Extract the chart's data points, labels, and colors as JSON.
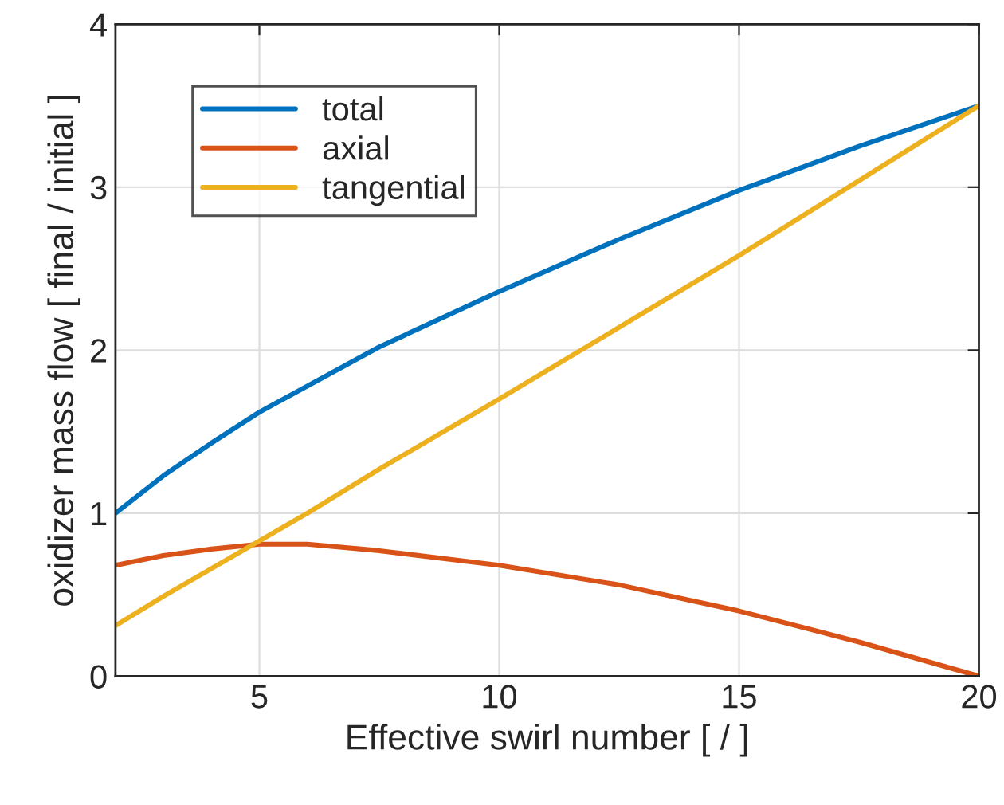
{
  "chart_data": {
    "type": "line",
    "xlabel": "Effective swirl number [ / ]",
    "ylabel": "oxidizer mass flow [ final / initial ]",
    "x": [
      2,
      3,
      4,
      5,
      6,
      7.5,
      10,
      12.5,
      15,
      17.5,
      20
    ],
    "series": [
      {
        "name": "total",
        "color": "#0072bd",
        "values": [
          1.0,
          1.23,
          1.43,
          1.62,
          1.78,
          2.02,
          2.36,
          2.68,
          2.98,
          3.25,
          3.5
        ]
      },
      {
        "name": "axial",
        "color": "#d95319",
        "values": [
          0.68,
          0.74,
          0.78,
          0.81,
          0.81,
          0.77,
          0.68,
          0.56,
          0.4,
          0.21,
          0.0
        ]
      },
      {
        "name": "tangential",
        "color": "#edb120",
        "values": [
          0.31,
          0.49,
          0.66,
          0.83,
          1.0,
          1.27,
          1.7,
          2.14,
          2.58,
          3.04,
          3.5
        ]
      }
    ],
    "xlim": [
      2,
      20
    ],
    "xticks": [
      5,
      10,
      15,
      20
    ],
    "ylim": [
      0,
      4
    ],
    "yticks": [
      0,
      1,
      2,
      3,
      4
    ],
    "grid": true,
    "legend": "top left",
    "marker": "none",
    "line_style": "solid"
  }
}
